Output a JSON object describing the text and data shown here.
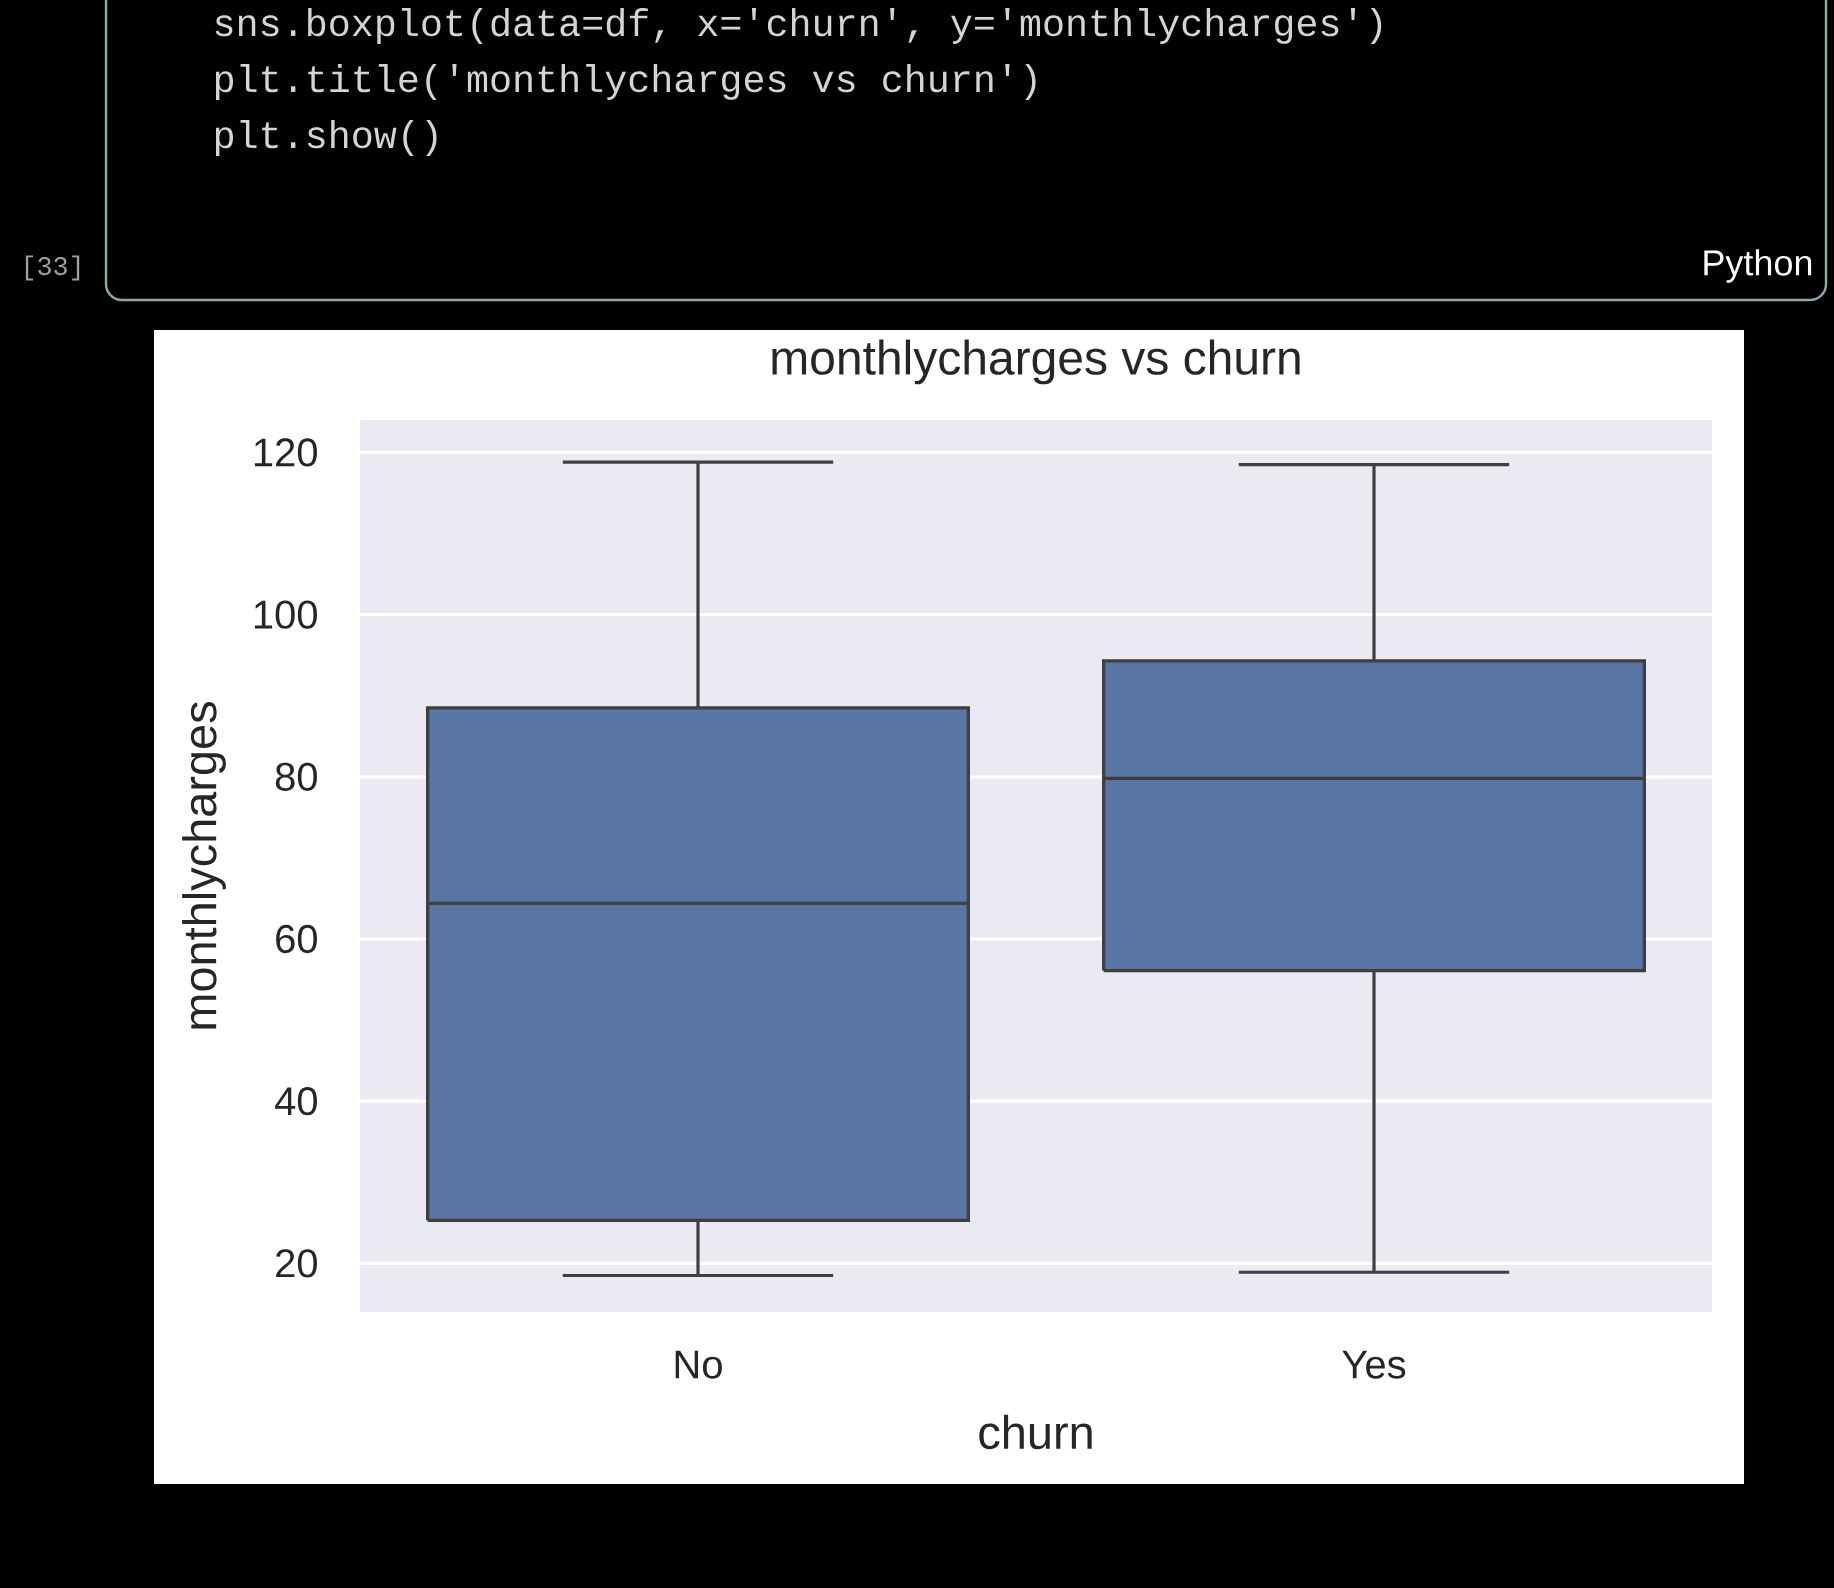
{
  "chart_data": {
    "type": "box",
    "title": "monthlycharges vs churn",
    "xlabel": "churn",
    "ylabel": "monthlycharges",
    "categories": [
      "No",
      "Yes"
    ],
    "boxes": [
      {
        "low": 18.5,
        "q1": 25.3,
        "median": 64.4,
        "q3": 88.5,
        "high": 118.8
      },
      {
        "low": 18.9,
        "q1": 56.1,
        "median": 79.8,
        "q3": 94.3,
        "high": 118.5
      }
    ],
    "color": "#5875a4",
    "ylim": [
      14,
      124
    ],
    "yticks": [
      20,
      40,
      60,
      80,
      100,
      120
    ],
    "grid": "y",
    "annotations": [
      "sns.boxplot(data=df, x='churn', y='monthlycharges')",
      "plt.title('monthlycharges vs churn')",
      "plt.show()",
      "[33]",
      "Python"
    ]
  }
}
